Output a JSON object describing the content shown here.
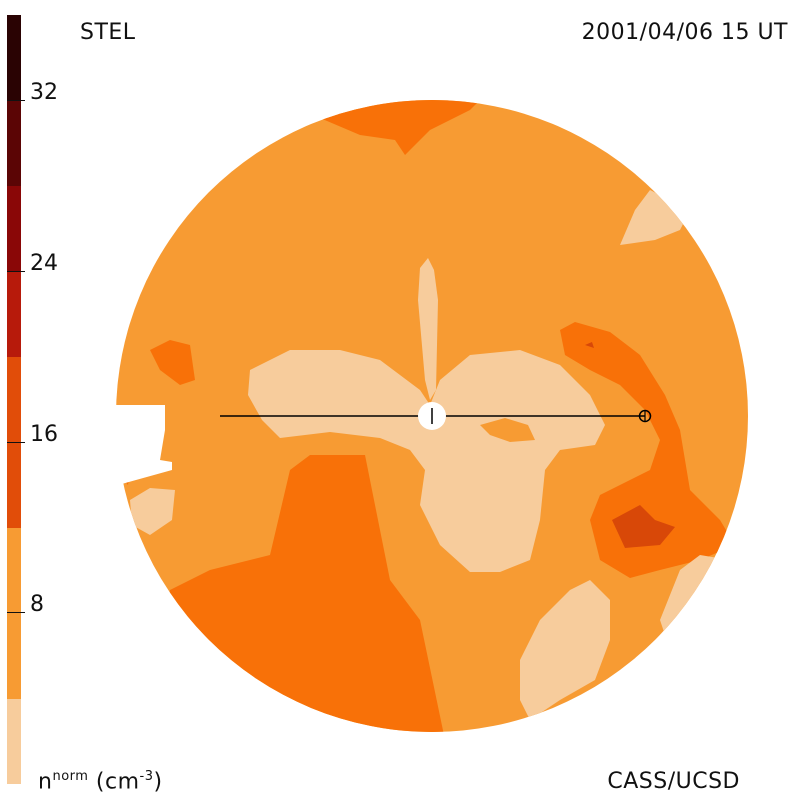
{
  "header": {
    "station": "STEL",
    "datetime": "2001/04/06 15 UT"
  },
  "footer": {
    "credit": "CASS/UCSD",
    "unit_label": "n",
    "unit_sup": "norm",
    "unit_suffix": " (cm",
    "unit_exp": "-3",
    "unit_close": ")"
  },
  "colorbar": {
    "ticks": [
      "32",
      "24",
      "16",
      "8"
    ],
    "colors": [
      "#f7cc9c",
      "#f79b33",
      "#f87108",
      "#e14d09",
      "#b71a0b",
      "#8a0707",
      "#5b0505",
      "#2a0303"
    ]
  },
  "map": {
    "colors": {
      "background_level": "#f79b33",
      "low": "#f7cc9c",
      "mid": "#f87108",
      "high": "#d84808",
      "line": "#000000",
      "sun": "#ffffff"
    }
  }
}
